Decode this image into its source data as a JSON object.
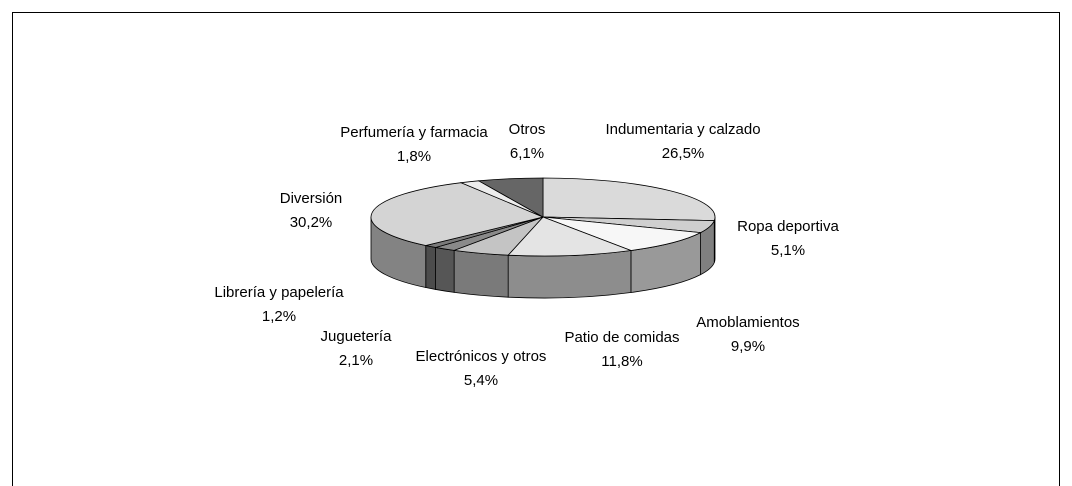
{
  "chart_data": {
    "type": "pie",
    "categories": [
      "Indumentaria y calzado",
      "Ropa deportiva",
      "Amoblamientos",
      "Patio de comidas",
      "Electrónicos y otros",
      "Juguetería",
      "Librería y papelería",
      "Diversión",
      "Perfumería y farmacia",
      "Otros"
    ],
    "values": [
      26.5,
      5.1,
      9.9,
      11.8,
      5.4,
      2.1,
      1.2,
      30.2,
      1.8,
      6.1
    ],
    "value_labels": [
      "26,5%",
      "5,1%",
      "9,9%",
      "11,8%",
      "5,4%",
      "2,1%",
      "1,2%",
      "30,2%",
      "1,8%",
      "6,1%"
    ],
    "colors": [
      "#dadada",
      "#cfcfcf",
      "#f7f7f7",
      "#e4e4e4",
      "#c4c4c4",
      "#8a8a8a",
      "#7a7a7a",
      "#d4d4d4",
      "#ededed",
      "#666666"
    ]
  }
}
